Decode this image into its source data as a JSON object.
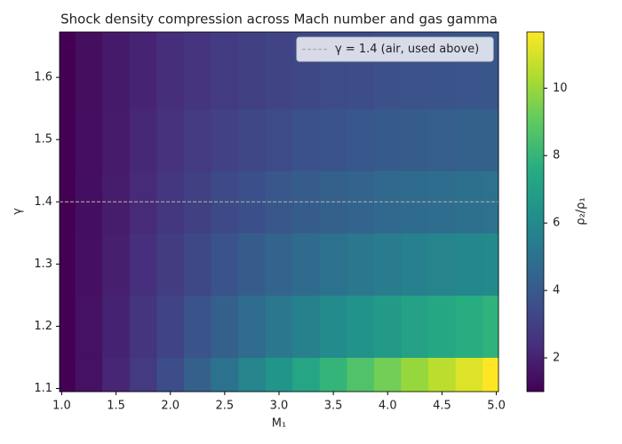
{
  "chart_data": {
    "type": "heatmap",
    "title": "Shock density compression across Mach number and gas gamma",
    "x_label": "M₁",
    "y_label": "γ",
    "colorbar_label": "ρ₂/ρ₁",
    "colormap": "viridis",
    "x": [
      1.0,
      1.25,
      1.5,
      1.75,
      2.0,
      2.25,
      2.5,
      2.75,
      3.0,
      3.25,
      3.5,
      3.75,
      4.0,
      4.25,
      4.5,
      4.75,
      5.0
    ],
    "y": [
      1.1,
      1.2,
      1.3,
      1.4,
      1.5,
      1.6
    ],
    "z": [
      [
        1.0,
        1.522,
        2.124,
        2.789,
        3.5,
        4.242,
        5.0,
        5.762,
        6.517,
        7.258,
        7.977,
        8.67,
        9.333,
        9.966,
        10.565,
        11.132,
        11.667
      ],
      [
        1.0,
        1.486,
        2.02,
        2.579,
        3.143,
        3.697,
        4.231,
        4.737,
        5.211,
        5.65,
        6.056,
        6.429,
        6.769,
        7.08,
        7.364,
        7.622,
        7.857
      ],
      [
        1.0,
        1.456,
        1.935,
        2.413,
        2.875,
        3.309,
        3.71,
        4.075,
        4.404,
        4.7,
        4.965,
        5.201,
        5.412,
        5.6,
        5.768,
        5.918,
        6.053
      ],
      [
        1.0,
        1.429,
        1.862,
        2.279,
        2.667,
        3.019,
        3.333,
        3.612,
        3.857,
        4.072,
        4.261,
        4.426,
        4.571,
        4.699,
        4.812,
        4.912,
        5.0
      ],
      [
        1.0,
        1.404,
        1.8,
        2.168,
        2.5,
        2.793,
        3.049,
        3.27,
        3.462,
        3.627,
        3.769,
        3.893,
        4.0,
        4.093,
        4.175,
        4.247,
        4.31
      ],
      [
        1.0,
        1.383,
        1.746,
        2.075,
        2.364,
        2.613,
        2.826,
        3.008,
        3.162,
        3.294,
        3.406,
        3.503,
        3.586,
        3.658,
        3.721,
        3.776,
        3.824
      ]
    ],
    "xlim": [
      0.98,
      5.02
    ],
    "ylim": [
      1.095,
      1.673
    ],
    "xticks": [
      {
        "value": 1,
        "label": "1.0"
      },
      1.5,
      {
        "value": 2,
        "label": "2.0"
      },
      2.5,
      {
        "value": 3,
        "label": "3.0"
      },
      3.5,
      {
        "value": 4,
        "label": "4.0"
      },
      4.5,
      {
        "value": 5,
        "label": "5.0"
      }
    ],
    "yticks": [
      1.1,
      1.2,
      1.3,
      1.4,
      1.5,
      1.6
    ],
    "clim": [
      1.0,
      11.667
    ],
    "cticks": [
      2,
      4,
      6,
      8,
      10
    ],
    "reference_line": {
      "y": 1.4,
      "label": "γ = 1.4 (air, used above)",
      "color": "#aaaaaa"
    },
    "legend": "upper right"
  }
}
